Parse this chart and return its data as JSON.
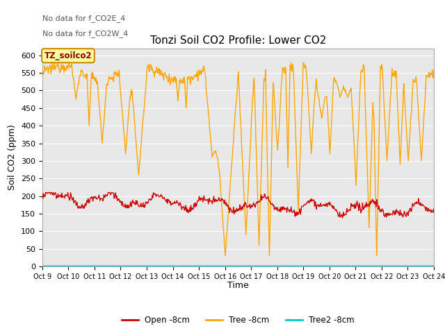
{
  "title": "Tonzi Soil CO2 Profile: Lower CO2",
  "ylabel": "Soil CO2 (ppm)",
  "xlabel": "Time",
  "annotation1": "No data for f_CO2E_4",
  "annotation2": "No data for f_CO2W_4",
  "legend_box_label": "TZ_soilco2",
  "ylim": [
    0,
    620
  ],
  "yticks": [
    0,
    50,
    100,
    150,
    200,
    250,
    300,
    350,
    400,
    450,
    500,
    550,
    600
  ],
  "xtick_labels": [
    "Oct 9",
    "Oct 10",
    "Oct 11",
    "Oct 12",
    "Oct 13",
    "Oct 14",
    "Oct 15",
    "Oct 16",
    "Oct 17",
    "Oct 18",
    "Oct 19",
    "Oct 20",
    "Oct 21",
    "Oct 22",
    "Oct 23",
    "Oct 24"
  ],
  "fig_bg_color": "#ffffff",
  "plot_bg_color": "#e8e8e8",
  "grid_color": "#ffffff",
  "tree_color": "#FFA500",
  "open_color": "#cc0000",
  "tree2_color": "#00cccc",
  "legend_labels": [
    "Open -8cm",
    "Tree -8cm",
    "Tree2 -8cm"
  ],
  "legend_colors": [
    "#cc0000",
    "#FFA500",
    "#00cccc"
  ]
}
